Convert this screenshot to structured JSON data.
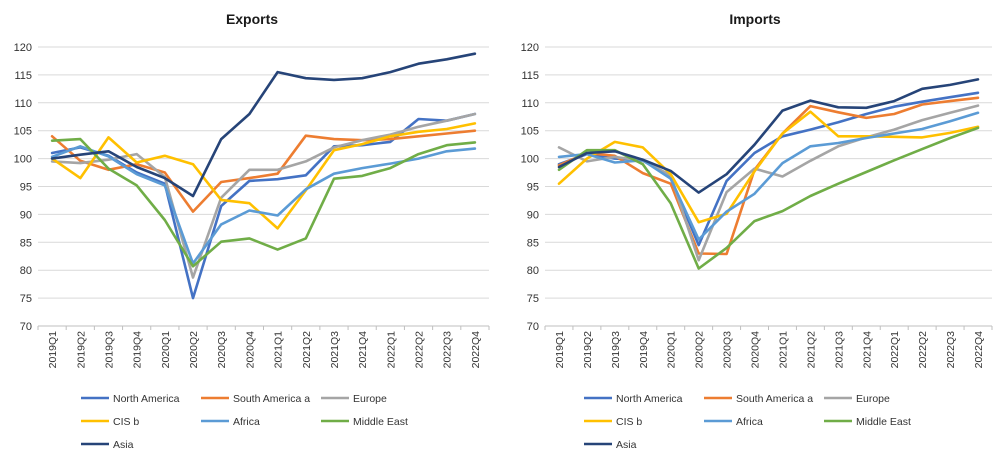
{
  "chart_data": [
    {
      "type": "line",
      "title": "Exports",
      "xlabel": "",
      "ylabel": "",
      "ylim": [
        70,
        120
      ],
      "yticks": [
        70,
        75,
        80,
        85,
        90,
        95,
        100,
        105,
        110,
        115,
        120
      ],
      "grid": true,
      "legend_position": "bottom",
      "categories": [
        "2019Q1",
        "2019Q2",
        "2019Q3",
        "2019Q4",
        "2020Q1",
        "2020Q2",
        "2020Q3",
        "2020Q4",
        "2021Q1",
        "2021Q2",
        "2021Q3",
        "2021Q4",
        "2022Q1",
        "2022Q2",
        "2022Q3",
        "2022Q4"
      ],
      "series": [
        {
          "name": "North America",
          "color": "#4472C4",
          "values": [
            101,
            102,
            100.5,
            97.5,
            95.5,
            75,
            91.5,
            96,
            96.3,
            97,
            102.2,
            102.4,
            103,
            107.1,
            106.8,
            108
          ]
        },
        {
          "name": "South America a",
          "color": "#ED7D31",
          "values": [
            104,
            99.6,
            98,
            99,
            97.5,
            90.5,
            95.8,
            96.5,
            97.3,
            104.1,
            103.5,
            103.3,
            103.5,
            104,
            104.5,
            105
          ]
        },
        {
          "name": "Europe",
          "color": "#A5A5A5",
          "values": [
            99.5,
            99.2,
            99.8,
            100.8,
            96.7,
            78.7,
            93,
            98,
            98,
            99.5,
            102,
            103.3,
            104.3,
            105.7,
            106.8,
            108
          ]
        },
        {
          "name": "CIS b",
          "color": "#FFC000",
          "values": [
            100,
            96.5,
            103.8,
            99.3,
            100.5,
            99,
            92.6,
            92,
            87.5,
            94.3,
            101.5,
            102.6,
            104,
            104.8,
            105.3,
            106.3
          ]
        },
        {
          "name": "Africa",
          "color": "#5B9BD5",
          "values": [
            100.3,
            102.2,
            100.4,
            97.2,
            95.2,
            81.2,
            88.2,
            90.7,
            89.8,
            94.5,
            97.3,
            98.3,
            99.1,
            100,
            101.3,
            101.8
          ]
        },
        {
          "name": "Middle East",
          "color": "#70AD47",
          "values": [
            103.2,
            103.5,
            98.2,
            95.2,
            89,
            80.7,
            85.1,
            85.7,
            83.7,
            85.7,
            96.4,
            96.9,
            98.3,
            100.8,
            102.4,
            102.9
          ]
        },
        {
          "name": "Asia",
          "color": "#264478",
          "values": [
            100,
            100.7,
            101.3,
            98.5,
            96.5,
            93.3,
            103.5,
            108,
            115.5,
            114.4,
            114.1,
            114.4,
            115.5,
            117,
            117.8,
            118.8
          ]
        }
      ]
    },
    {
      "type": "line",
      "title": "Imports",
      "xlabel": "",
      "ylabel": "",
      "ylim": [
        70,
        120
      ],
      "yticks": [
        70,
        75,
        80,
        85,
        90,
        95,
        100,
        105,
        110,
        115,
        120
      ],
      "grid": true,
      "legend_position": "bottom",
      "categories": [
        "2019Q1",
        "2019Q2",
        "2019Q3",
        "2019Q4",
        "2020Q1",
        "2020Q2",
        "2020Q3",
        "2020Q4",
        "2021Q1",
        "2021Q2",
        "2021Q3",
        "2021Q4",
        "2022Q1",
        "2022Q2",
        "2022Q3",
        "2022Q4"
      ],
      "series": [
        {
          "name": "North America",
          "color": "#4472C4",
          "values": [
            99,
            100.8,
            100,
            99.8,
            96.5,
            84.5,
            96,
            101,
            104,
            105.2,
            106.5,
            108,
            109.3,
            110.2,
            111,
            111.8
          ]
        },
        {
          "name": "South America a",
          "color": "#ED7D31",
          "values": [
            98.8,
            101,
            100.5,
            97.4,
            95.5,
            83,
            82.9,
            98,
            104.5,
            109.4,
            108.3,
            107.3,
            108,
            109.7,
            110.3,
            110.9
          ]
        },
        {
          "name": "Europe",
          "color": "#A5A5A5",
          "values": [
            102,
            99.5,
            100.3,
            99.6,
            97,
            81.8,
            94,
            98.2,
            96.8,
            99.6,
            102.2,
            103.8,
            105.2,
            106.9,
            108.2,
            109.5
          ]
        },
        {
          "name": "CIS b",
          "color": "#FFC000",
          "values": [
            95.5,
            100,
            103,
            102,
            97.2,
            88.6,
            90.1,
            97.7,
            104.5,
            108.4,
            104,
            104,
            103.9,
            103.8,
            104.6,
            105.7
          ]
        },
        {
          "name": "Africa",
          "color": "#5B9BD5",
          "values": [
            100.3,
            100.8,
            99.3,
            99.7,
            96.4,
            85.5,
            90.5,
            93.7,
            99.2,
            102.2,
            102.8,
            103.7,
            104.5,
            105.3,
            106.7,
            108.2
          ]
        },
        {
          "name": "Middle East",
          "color": "#70AD47",
          "values": [
            98,
            101.5,
            101.5,
            99,
            92,
            80.3,
            84,
            88.8,
            90.6,
            93.3,
            95.5,
            97.6,
            99.7,
            101.7,
            103.7,
            105.5
          ]
        },
        {
          "name": "Asia",
          "color": "#264478",
          "values": [
            98.5,
            101,
            101.3,
            99.8,
            97.8,
            93.9,
            97.2,
            102.5,
            108.6,
            110.4,
            109.2,
            109.1,
            110.3,
            112.5,
            113.2,
            114.2
          ]
        }
      ]
    }
  ]
}
